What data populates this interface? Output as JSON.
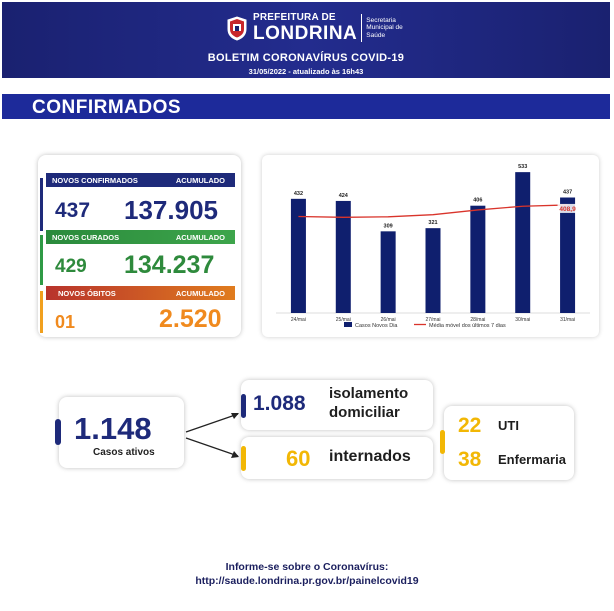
{
  "header": {
    "org_top": "PREFEITURA DE",
    "org_main": "LONDRINA",
    "org_sub1": "Secretaria",
    "org_sub2": "Municipal de",
    "org_sub3": "Saúde",
    "title": "BOLETIM CORONAVÍRUS COVID-19",
    "date": "31/05/2022 - atualizado às 16h43",
    "bg_color": "#1a2170"
  },
  "section": {
    "title": "CONFIRMADOS"
  },
  "stats": {
    "confirmed": {
      "label": "NOVOS CONFIRMADOS",
      "acc_label": "ACUMULADO",
      "new": "437",
      "total": "137.905",
      "color": "#1e2a7a"
    },
    "recovered": {
      "label": "NOVOS CURADOS",
      "acc_label": "ACUMULADO",
      "new": "429",
      "total": "134.237",
      "color": "#2e8a3c"
    },
    "deaths": {
      "label": "NOVOS ÓBITOS",
      "acc_label": "ACUMULADO",
      "new": "01",
      "total": "2.520",
      "color": "#f08a1e"
    }
  },
  "chart_data": {
    "type": "bar",
    "categories": [
      "24/mai",
      "25/mai",
      "26/mai",
      "27/mai",
      "28/mai",
      "30/mai",
      "31/mai"
    ],
    "series": [
      {
        "name": "Casos Novos Dia",
        "type": "bar",
        "values": [
          432,
          424,
          309,
          321,
          406,
          533,
          437
        ],
        "color": "#0f1f6e"
      },
      {
        "name": "Média móvel dos últimos 7 dias",
        "type": "line",
        "values": [
          365,
          362,
          364,
          372,
          390,
          404,
          408.9
        ],
        "color": "#d9342b"
      }
    ],
    "data_labels": [
      "432",
      "424",
      "309",
      "321",
      "406",
      "533",
      "437"
    ],
    "line_end_label": "408,9",
    "ylim": [
      0,
      560
    ],
    "grid": false,
    "legend_position": "bottom"
  },
  "active": {
    "total": "1.148",
    "total_label": "Casos ativos",
    "home": "1.088",
    "home_label_1": "isolamento",
    "home_label_2": "domiciliar",
    "hospital": "60",
    "hospital_label": "internados",
    "icu": "22",
    "icu_label": "UTI",
    "ward": "38",
    "ward_label": "Enfermaria"
  },
  "footer": {
    "line1": "Informe-se sobre o Coronavírus:",
    "line2": "http://saude.londrina.pr.gov.br/painelcovid19"
  }
}
